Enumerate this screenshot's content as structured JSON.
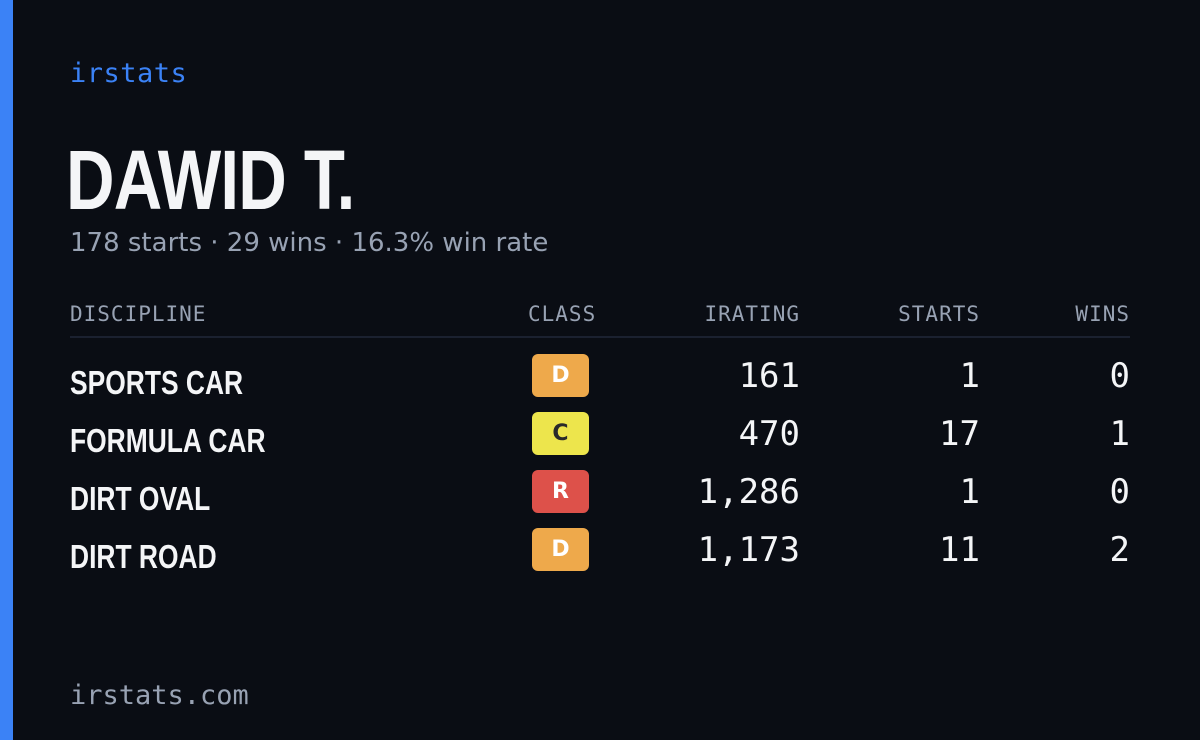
{
  "brand": "irstats",
  "driver": {
    "name": "DAWID T.",
    "summary": "178 starts · 29 wins · 16.3% win rate"
  },
  "table": {
    "headers": {
      "discipline": "DISCIPLINE",
      "class": "CLASS",
      "irating": "IRATING",
      "starts": "STARTS",
      "wins": "WINS"
    },
    "rows": [
      {
        "discipline": "SPORTS CAR",
        "class": "D",
        "class_bg": "#eea94b",
        "class_fg": "#ffffff",
        "irating": "161",
        "starts": "1",
        "wins": "0"
      },
      {
        "discipline": "FORMULA CAR",
        "class": "C",
        "class_bg": "#ede54c",
        "class_fg": "#2a2a2a",
        "irating": "470",
        "starts": "17",
        "wins": "1"
      },
      {
        "discipline": "DIRT OVAL",
        "class": "R",
        "class_bg": "#dd514a",
        "class_fg": "#ffffff",
        "irating": "1,286",
        "starts": "1",
        "wins": "0"
      },
      {
        "discipline": "DIRT ROAD",
        "class": "D",
        "class_bg": "#eea94b",
        "class_fg": "#ffffff",
        "irating": "1,173",
        "starts": "11",
        "wins": "2"
      }
    ]
  },
  "footer": {
    "site": "irstats.com"
  },
  "colors": {
    "background": "#0a0d14",
    "accent": "#3b82f6",
    "text": "#f4f5f7",
    "muted": "#98a2b3"
  }
}
